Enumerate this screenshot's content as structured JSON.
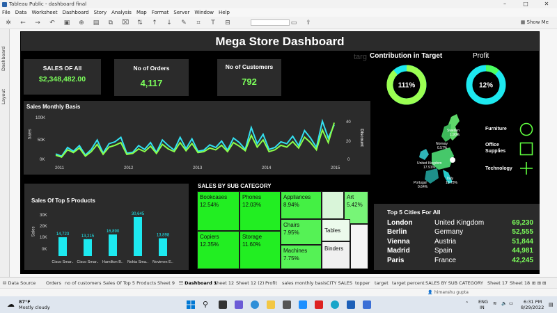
{
  "window": {
    "title": "Tableau Public - dashboard final"
  },
  "menu": [
    "File",
    "Data",
    "Worksheet",
    "Dashboard",
    "Story",
    "Analysis",
    "Map",
    "Format",
    "Server",
    "Window",
    "Help"
  ],
  "toolbar": {
    "show_me_label": "Show Me"
  },
  "left_rail": {
    "tab1": "Dashboard",
    "tab2": "Layout"
  },
  "dashboard": {
    "title": "Mega Store Dashboard",
    "faded_text": "targ",
    "kpis": {
      "sales": {
        "label": "SALES OF All",
        "value": "$2,348,482.00"
      },
      "orders": {
        "label": "No of Orders",
        "value": "4,117"
      },
      "customers": {
        "label": "No of Customers",
        "value": "792"
      }
    },
    "donuts": {
      "target": {
        "title": "Contribution in Target",
        "value": "111%",
        "percent": 111
      },
      "profit": {
        "title": "Profit",
        "value": "12%",
        "percent": 12
      }
    },
    "map": {
      "labels": [
        "Sweden",
        "1.90%",
        "Norway",
        "0.57%",
        "United Kingdom",
        "17.91%",
        "Portugal",
        "0.64%",
        "Italy",
        "10.73%"
      ]
    },
    "map_legend": [
      {
        "label": "Furniture",
        "shape": "circle"
      },
      {
        "label": "Office Supplies",
        "shape": "square"
      },
      {
        "label": "Technology",
        "shape": "plus"
      }
    ],
    "monthly": {
      "title": "Sales Monthly Basis",
      "left_axis_title": "Sales",
      "right_axis_title": "Discount",
      "left_ticks": [
        "100K",
        "50K",
        "0K"
      ],
      "right_ticks": [
        "40",
        "20",
        "0"
      ],
      "years": [
        "2011",
        "2012",
        "2013",
        "2014",
        "2015"
      ]
    },
    "top5": {
      "title": "Sales Of Top 5 Products",
      "y_axis_title": "Sales",
      "y_ticks": [
        "30K",
        "20K",
        "10K",
        "0K"
      ]
    },
    "treemap": {
      "title": "SALES BY SUB CATEGORY",
      "cells": [
        {
          "name": "Bookcases",
          "pct": "12.54%"
        },
        {
          "name": "Phones",
          "pct": "12.03%"
        },
        {
          "name": "Appliances",
          "pct": "8.94%"
        },
        {
          "name": "Art",
          "pct": "5.42%"
        },
        {
          "name": "Copiers",
          "pct": "12.35%"
        },
        {
          "name": "Storage",
          "pct": "11.60%"
        },
        {
          "name": "Chairs",
          "pct": "7.95%"
        },
        {
          "name": "Tables",
          "pct": ""
        },
        {
          "name": "Machines",
          "pct": "7.75%"
        },
        {
          "name": "Binders",
          "pct": ""
        }
      ]
    },
    "cities": {
      "title": "Top 5 Cities For  All",
      "rows": [
        {
          "city": "London",
          "country": "United Kingdom",
          "value": "69,230"
        },
        {
          "city": "Berlin",
          "country": "Germany",
          "value": "52,555"
        },
        {
          "city": "Vienna",
          "country": "Austria",
          "value": "51,844"
        },
        {
          "city": "Madrid",
          "country": "Spain",
          "value": "44,981"
        },
        {
          "city": "Paris",
          "country": "France",
          "value": "42,245"
        }
      ]
    },
    "colors": {
      "accent_green": "#7cff5b",
      "cyan": "#1de9f0",
      "panel": "#2b2b2b"
    }
  },
  "chart_data": [
    {
      "type": "line",
      "title": "Sales Monthly Basis",
      "ylabel": "Sales",
      "y2label": "Discount",
      "ylim": [
        0,
        120000
      ],
      "y2lim": [
        0,
        50
      ],
      "x_range": [
        "2011-01",
        "2014-12"
      ],
      "series": [
        {
          "name": "Sales",
          "color": "#33e0f0",
          "values": [
            18000,
            12000,
            35000,
            25000,
            40000,
            15000,
            30000,
            55000,
            20000,
            45000,
            50000,
            62000,
            20000,
            22000,
            40000,
            30000,
            48000,
            22000,
            55000,
            40000,
            28000,
            62000,
            32000,
            58000,
            25000,
            28000,
            42000,
            35000,
            52000,
            28000,
            60000,
            48000,
            30000,
            88000,
            45000,
            70000,
            30000,
            35000,
            50000,
            45000,
            65000,
            40000,
            80000,
            60000,
            35000,
            105000,
            60000,
            95000
          ]
        },
        {
          "name": "Discount",
          "color": "#8bff4a",
          "values": [
            6,
            4,
            12,
            9,
            14,
            5,
            10,
            18,
            7,
            15,
            17,
            20,
            7,
            8,
            13,
            10,
            16,
            8,
            18,
            13,
            10,
            20,
            11,
            19,
            9,
            10,
            14,
            12,
            17,
            10,
            20,
            16,
            11,
            28,
            15,
            23,
            10,
            12,
            17,
            15,
            21,
            14,
            26,
            20,
            12,
            34,
            20,
            42
          ]
        }
      ]
    },
    {
      "type": "bar",
      "title": "Sales Of Top 5 Products",
      "ylabel": "Sales",
      "ylim": [
        0,
        35000
      ],
      "categories": [
        "Cisco Smar..",
        "Cisco Smar..",
        "Hamilton B..",
        "Nokia Sma..",
        "Novimex E.."
      ],
      "values": [
        14723,
        13215,
        16890,
        30645,
        13898
      ],
      "value_labels": [
        "14,723",
        "13,215",
        "16,890",
        "30,645",
        "13,898"
      ]
    }
  ],
  "sheet_tabs": [
    "Data Source",
    "Orders",
    "no of customers",
    "Sales Of Top 5 Products",
    "Sheet 9",
    "Dashboard 1",
    "Sheet 12",
    "Sheet 12 (2)",
    "Profit",
    "sales monthly basis",
    "CITY SALES",
    "topper",
    "target",
    "target percent",
    "SALES BY SUB CATEGORY",
    "Sheet 17",
    "Sheet 18"
  ],
  "status": {
    "user": "himanshu gupta"
  },
  "taskbar": {
    "weather_temp": "87°F",
    "weather_desc": "Mostly cloudy",
    "lang1": "ENG",
    "lang2": "IN",
    "time": "6:31 PM",
    "date": "8/29/2022"
  }
}
